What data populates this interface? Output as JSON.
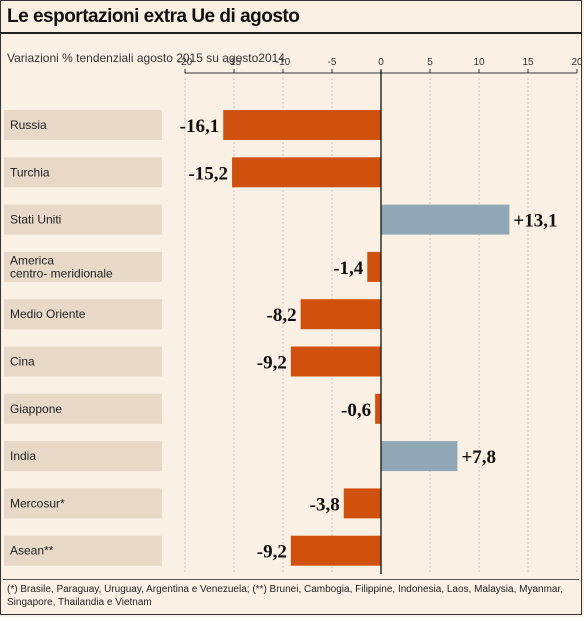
{
  "title": "Le esportazioni extra Ue di agosto",
  "subtitle": "Variazioni % tendenziali agosto 2015 su agosto2014",
  "footnote": "(*) Brasile, Paraguay, Uruguay, Argentina e Venezuela; (**) Brunei, Cambogia, Filippine, Indonesia, Laos, Malaysia, Myanmar, Singapore, Thailandia e Vietnam",
  "colors": {
    "negative": "#d0510e",
    "positive": "#90a8b6",
    "label_bg": "#e8d8c8"
  },
  "chart_data": {
    "type": "bar",
    "orientation": "horizontal",
    "title": "Le esportazioni extra Ue di agosto",
    "subtitle": "Variazioni % tendenziali agosto 2015 su agosto2014",
    "xlim": [
      -20,
      20
    ],
    "xticks": [
      -20,
      -15,
      -10,
      -5,
      0,
      5,
      10,
      15,
      20
    ],
    "categories": [
      "Russia",
      "Turchia",
      "Stati Uniti",
      "America centro- meridionale",
      "Medio Oriente",
      "Cina",
      "Giappone",
      "India",
      "Mercosur*",
      "Asean**"
    ],
    "category_lines": [
      [
        "Russia"
      ],
      [
        "Turchia"
      ],
      [
        "Stati Uniti"
      ],
      [
        "America",
        "centro- meridionale"
      ],
      [
        "Medio Oriente"
      ],
      [
        "Cina"
      ],
      [
        "Giappone"
      ],
      [
        "India"
      ],
      [
        "Mercosur*"
      ],
      [
        "Asean**"
      ]
    ],
    "values": [
      -16.1,
      -15.2,
      13.1,
      -1.4,
      -8.2,
      -9.2,
      -0.6,
      7.8,
      -3.8,
      -9.2
    ],
    "value_labels": [
      "-16,1",
      "-15,2",
      "+13,1",
      "-1,4",
      "-8,2",
      "-9,2",
      "-0,6",
      "+7,8",
      "-3,8",
      "-9,2"
    ]
  }
}
